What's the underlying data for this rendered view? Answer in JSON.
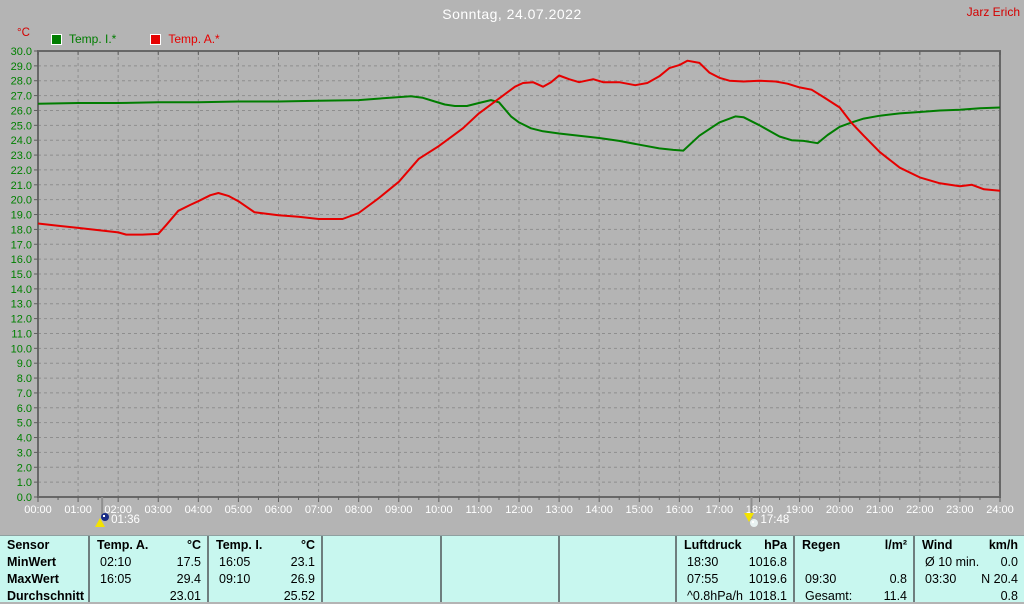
{
  "window": {
    "title": "Sonntag, 24.07.2022",
    "station": "Jarz Erich"
  },
  "legend": [
    {
      "id": "temp_i",
      "label": "Temp. I.*",
      "color": "#007d00"
    },
    {
      "id": "temp_a",
      "label": "Temp. A.*",
      "color": "#e60000"
    }
  ],
  "markers": [
    {
      "time": "01:36",
      "hour": 1.6,
      "direction": "up"
    },
    {
      "time": "17:48",
      "hour": 17.8,
      "direction": "down"
    }
  ],
  "chart_data": {
    "type": "line",
    "title": "Sonntag, 24.07.2022",
    "xlabel": "",
    "ylabel": "°C",
    "xlim": [
      0,
      24
    ],
    "ylim": [
      0,
      30
    ],
    "y_step": 1,
    "grid": true,
    "legend_position": "top-left",
    "x_tick_labels": [
      "00:00",
      "01:00",
      "02:00",
      "03:00",
      "04:00",
      "05:00",
      "06:00",
      "07:00",
      "08:00",
      "09:00",
      "10:00",
      "11:00",
      "12:00",
      "13:00",
      "14:00",
      "15:00",
      "16:00",
      "17:00",
      "18:00",
      "19:00",
      "20:00",
      "21:00",
      "22:00",
      "23:00",
      "24:00"
    ],
    "series": [
      {
        "id": "temp_i",
        "name": "Temp. I.*",
        "color": "#007d00",
        "points": [
          [
            0,
            26.45
          ],
          [
            1,
            26.5
          ],
          [
            2,
            26.5
          ],
          [
            3,
            26.55
          ],
          [
            4,
            26.55
          ],
          [
            5,
            26.6
          ],
          [
            6,
            26.6
          ],
          [
            7,
            26.65
          ],
          [
            8,
            26.7
          ],
          [
            8.5,
            26.8
          ],
          [
            9,
            26.9
          ],
          [
            9.3,
            26.95
          ],
          [
            9.6,
            26.85
          ],
          [
            9.9,
            26.6
          ],
          [
            10.15,
            26.4
          ],
          [
            10.4,
            26.3
          ],
          [
            10.7,
            26.3
          ],
          [
            11,
            26.5
          ],
          [
            11.3,
            26.7
          ],
          [
            11.5,
            26.55
          ],
          [
            11.8,
            25.6
          ],
          [
            12,
            25.2
          ],
          [
            12.3,
            24.8
          ],
          [
            12.6,
            24.6
          ],
          [
            13,
            24.45
          ],
          [
            13.5,
            24.3
          ],
          [
            14,
            24.15
          ],
          [
            14.5,
            23.95
          ],
          [
            15,
            23.7
          ],
          [
            15.5,
            23.45
          ],
          [
            15.85,
            23.35
          ],
          [
            16.1,
            23.3
          ],
          [
            16.5,
            24.3
          ],
          [
            17,
            25.2
          ],
          [
            17.4,
            25.6
          ],
          [
            17.6,
            25.55
          ],
          [
            18,
            25.0
          ],
          [
            18.5,
            24.25
          ],
          [
            18.8,
            24.0
          ],
          [
            19.1,
            23.95
          ],
          [
            19.45,
            23.8
          ],
          [
            19.7,
            24.35
          ],
          [
            20,
            24.9
          ],
          [
            20.3,
            25.2
          ],
          [
            20.6,
            25.45
          ],
          [
            21,
            25.65
          ],
          [
            21.5,
            25.8
          ],
          [
            22,
            25.9
          ],
          [
            22.5,
            26.0
          ],
          [
            23,
            26.05
          ],
          [
            23.5,
            26.15
          ],
          [
            24,
            26.2
          ]
        ]
      },
      {
        "id": "temp_a",
        "name": "Temp. A.*",
        "color": "#e60000",
        "points": [
          [
            0,
            18.4
          ],
          [
            0.5,
            18.25
          ],
          [
            1,
            18.1
          ],
          [
            1.5,
            17.95
          ],
          [
            2,
            17.8
          ],
          [
            2.2,
            17.65
          ],
          [
            2.6,
            17.65
          ],
          [
            3,
            17.7
          ],
          [
            3.2,
            18.3
          ],
          [
            3.5,
            19.25
          ],
          [
            3.8,
            19.65
          ],
          [
            4,
            19.9
          ],
          [
            4.3,
            20.3
          ],
          [
            4.5,
            20.45
          ],
          [
            4.75,
            20.25
          ],
          [
            5,
            19.9
          ],
          [
            5.4,
            19.15
          ],
          [
            6,
            18.95
          ],
          [
            6.5,
            18.85
          ],
          [
            7,
            18.7
          ],
          [
            7.6,
            18.7
          ],
          [
            8,
            19.1
          ],
          [
            8.5,
            20.1
          ],
          [
            9,
            21.2
          ],
          [
            9.5,
            22.75
          ],
          [
            10,
            23.6
          ],
          [
            10.3,
            24.2
          ],
          [
            10.6,
            24.8
          ],
          [
            11,
            25.8
          ],
          [
            11.5,
            26.8
          ],
          [
            11.9,
            27.6
          ],
          [
            12.1,
            27.85
          ],
          [
            12.35,
            27.9
          ],
          [
            12.6,
            27.6
          ],
          [
            12.8,
            27.9
          ],
          [
            13,
            28.35
          ],
          [
            13.25,
            28.1
          ],
          [
            13.5,
            27.9
          ],
          [
            13.85,
            28.1
          ],
          [
            14.1,
            27.9
          ],
          [
            14.5,
            27.9
          ],
          [
            14.9,
            27.7
          ],
          [
            15.2,
            27.85
          ],
          [
            15.5,
            28.3
          ],
          [
            15.75,
            28.85
          ],
          [
            16,
            29.05
          ],
          [
            16.2,
            29.35
          ],
          [
            16.5,
            29.2
          ],
          [
            16.75,
            28.55
          ],
          [
            17,
            28.2
          ],
          [
            17.25,
            28.0
          ],
          [
            17.6,
            27.95
          ],
          [
            18,
            28.0
          ],
          [
            18.4,
            27.95
          ],
          [
            18.7,
            27.8
          ],
          [
            19,
            27.55
          ],
          [
            19.3,
            27.4
          ],
          [
            19.6,
            26.9
          ],
          [
            20,
            26.2
          ],
          [
            20.3,
            25.15
          ],
          [
            20.6,
            24.3
          ],
          [
            21,
            23.2
          ],
          [
            21.5,
            22.15
          ],
          [
            22,
            21.5
          ],
          [
            22.5,
            21.1
          ],
          [
            23,
            20.9
          ],
          [
            23.3,
            21.0
          ],
          [
            23.6,
            20.7
          ],
          [
            24,
            20.6
          ]
        ]
      }
    ]
  },
  "table": {
    "row_labels": [
      "Sensor",
      "MinWert",
      "MaxWert",
      "Durchschnitt"
    ],
    "columns": [
      {
        "name": "Temp. A.",
        "unit": "°C",
        "min": [
          "02:10",
          "17.5"
        ],
        "max": [
          "16:05",
          "29.4"
        ],
        "avg": [
          "",
          "23.01"
        ]
      },
      {
        "name": "Temp. I.",
        "unit": "°C",
        "min": [
          "16:05",
          "23.1"
        ],
        "max": [
          "09:10",
          "26.9"
        ],
        "avg": [
          "",
          "25.52"
        ]
      },
      {
        "name": "",
        "unit": "",
        "min": [
          "",
          ""
        ],
        "max": [
          "",
          ""
        ],
        "avg": [
          "",
          ""
        ]
      },
      {
        "name": "",
        "unit": "",
        "min": [
          "",
          ""
        ],
        "max": [
          "",
          ""
        ],
        "avg": [
          "",
          ""
        ]
      },
      {
        "name": "",
        "unit": "",
        "min": [
          "",
          ""
        ],
        "max": [
          "",
          ""
        ],
        "avg": [
          "",
          ""
        ]
      },
      {
        "name": "Luftdruck",
        "unit": "hPa",
        "min": [
          "18:30",
          "1016.8"
        ],
        "max": [
          "07:55",
          "1019.6"
        ],
        "avg": [
          "^0.8hPa/h",
          "1018.1"
        ]
      },
      {
        "name": "Regen",
        "unit": "l/m²",
        "min": [
          "",
          ""
        ],
        "max": [
          "09:30",
          "0.8"
        ],
        "avg": [
          "Gesamt:",
          "11.4"
        ]
      },
      {
        "name": "Wind",
        "unit": "km/h",
        "min": [
          "Ø 10 min.",
          "0.0"
        ],
        "max": [
          "03:30",
          "N 20.4"
        ],
        "avg": [
          "",
          "0.8"
        ]
      }
    ]
  }
}
